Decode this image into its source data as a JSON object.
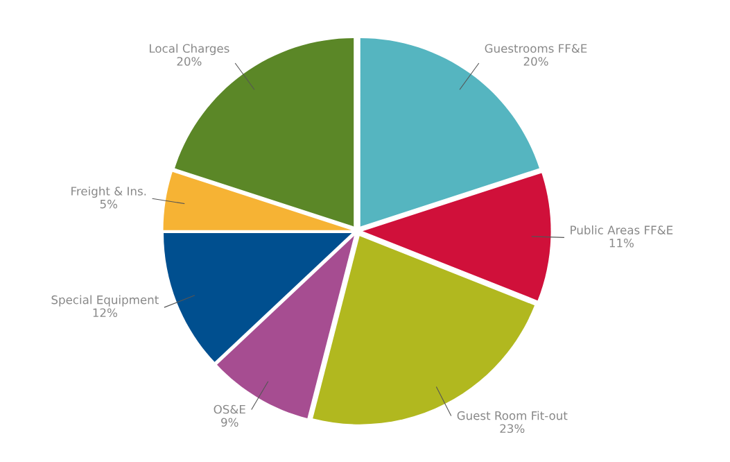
{
  "chart_data": {
    "type": "pie",
    "categories": [
      "Guestrooms FF&E",
      "Public Areas FF&E",
      "Guest Room Fit-out",
      "OS&E",
      "Special Equipment",
      "Freight & Ins.",
      "Local Charges"
    ],
    "values": [
      20,
      11,
      23,
      9,
      12,
      5,
      20
    ],
    "colors": [
      "#55b5c0",
      "#d0103a",
      "#b1b81f",
      "#a64d91",
      "#004f8f",
      "#f6b334",
      "#5b8727"
    ],
    "value_labels": [
      "20%",
      "11%",
      "23%",
      "9%",
      "12%",
      "5%",
      "20%"
    ]
  }
}
